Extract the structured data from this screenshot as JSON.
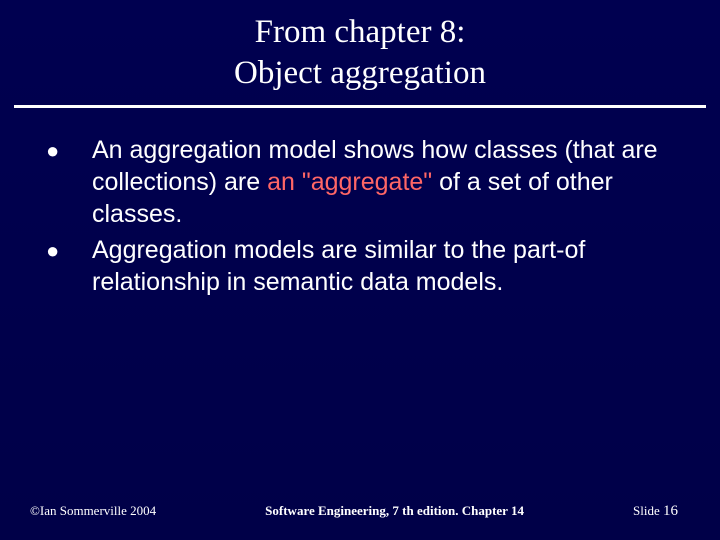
{
  "colors": {
    "background": "#00004d",
    "text": "#ffffff",
    "accent": "#ff6666",
    "rule": "#ffffff"
  },
  "title": {
    "line1": "From chapter 8:",
    "line2": "Object aggregation",
    "font_family": "Georgia, Times New Roman, serif",
    "font_size_pt": 33
  },
  "bullets": [
    {
      "pre": "An aggregation model shows how classes (that are collections) are ",
      "accent": "an \"aggregate\"",
      "post": " of a set of other classes."
    },
    {
      "pre": "Aggregation models are similar to the part-of relationship in semantic data models.",
      "accent": "",
      "post": ""
    }
  ],
  "body_style": {
    "font_size_pt": 25,
    "bullet_glyph": "●"
  },
  "footer": {
    "left": "©Ian Sommerville 2004",
    "center": "Software Engineering, 7 th edition. Chapter 14",
    "right_label": "Slide ",
    "right_number": "16",
    "font_size_pt": 13
  }
}
